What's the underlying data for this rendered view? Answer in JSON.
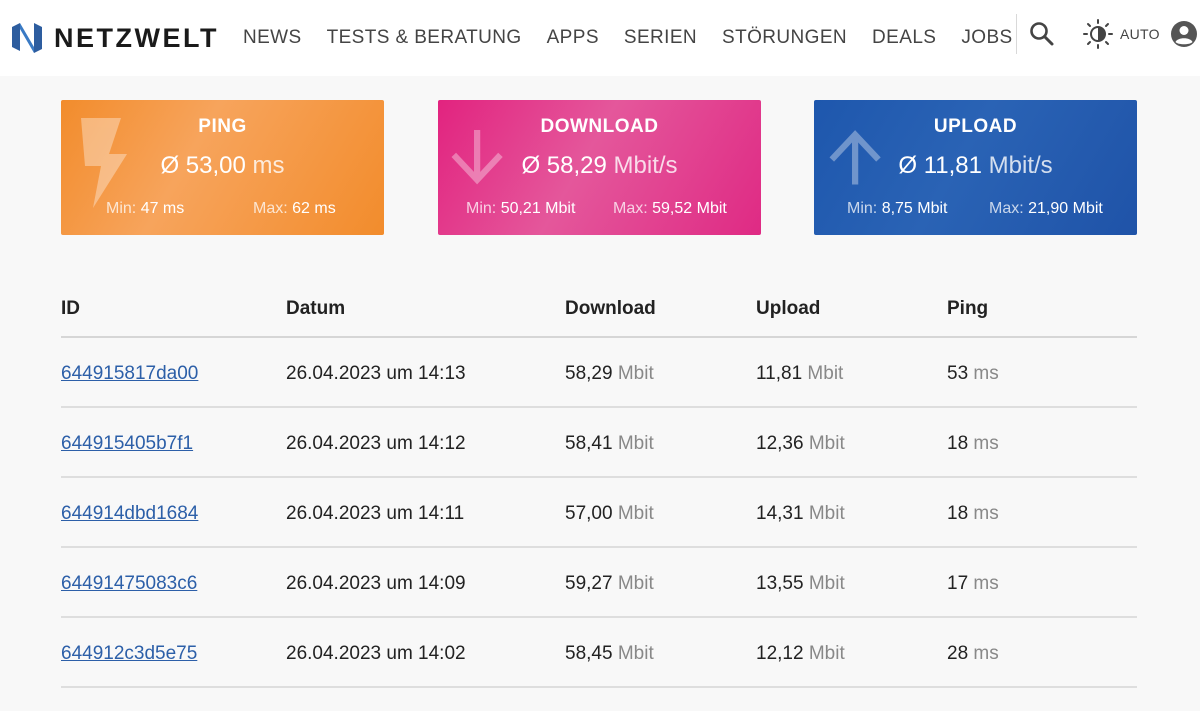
{
  "brand": {
    "name": "NETZWELT"
  },
  "nav": {
    "items": [
      "NEWS",
      "TESTS & BERATUNG",
      "APPS",
      "SERIEN",
      "STÖRUNGEN",
      "DEALS",
      "JOBS"
    ]
  },
  "theme": {
    "label": "AUTO"
  },
  "cards": {
    "ping": {
      "title": "PING",
      "avg_prefix": "Ø ",
      "avg": "53,00",
      "unit": "ms",
      "min_label": "Min:",
      "min_value": "47 ms",
      "max_label": "Max:",
      "max_value": "62 ms"
    },
    "download": {
      "title": "DOWNLOAD",
      "avg_prefix": "Ø ",
      "avg": "58,29",
      "unit": "Mbit/s",
      "min_label": "Min:",
      "min_value": "50,21 Mbit",
      "max_label": "Max:",
      "max_value": "59,52 Mbit"
    },
    "upload": {
      "title": "UPLOAD",
      "avg_prefix": "Ø ",
      "avg": "11,81",
      "unit": "Mbit/s",
      "min_label": "Min:",
      "min_value": "8,75 Mbit",
      "max_label": "Max:",
      "max_value": "21,90 Mbit"
    }
  },
  "table": {
    "headers": [
      "ID",
      "Datum",
      "Download",
      "Upload",
      "Ping"
    ],
    "rows": [
      {
        "id": "644915817da00",
        "date": "26.04.2023 um 14:13",
        "download": "58,29",
        "upload": "11,81",
        "ping": "53"
      },
      {
        "id": "644915405b7f1",
        "date": "26.04.2023 um 14:12",
        "download": "58,41",
        "upload": "12,36",
        "ping": "18"
      },
      {
        "id": "644914dbd1684",
        "date": "26.04.2023 um 14:11",
        "download": "57,00",
        "upload": "14,31",
        "ping": "18"
      },
      {
        "id": "64491475083c6",
        "date": "26.04.2023 um 14:09",
        "download": "59,27",
        "upload": "13,55",
        "ping": "17"
      },
      {
        "id": "644912c3d5e75",
        "date": "26.04.2023 um 14:02",
        "download": "58,45",
        "upload": "12,12",
        "ping": "28"
      }
    ],
    "units": {
      "speed": "Mbit",
      "ping": "ms"
    }
  },
  "colors": {
    "ping": "#f28c2c",
    "download": "#e2237f",
    "upload": "#1e57ad",
    "link": "#2c5fa8"
  },
  "icons": [
    "netzwelt-logo-icon",
    "search-icon",
    "brightness-icon",
    "user-account-icon",
    "lightning-icon",
    "arrow-down-icon",
    "arrow-up-icon"
  ]
}
